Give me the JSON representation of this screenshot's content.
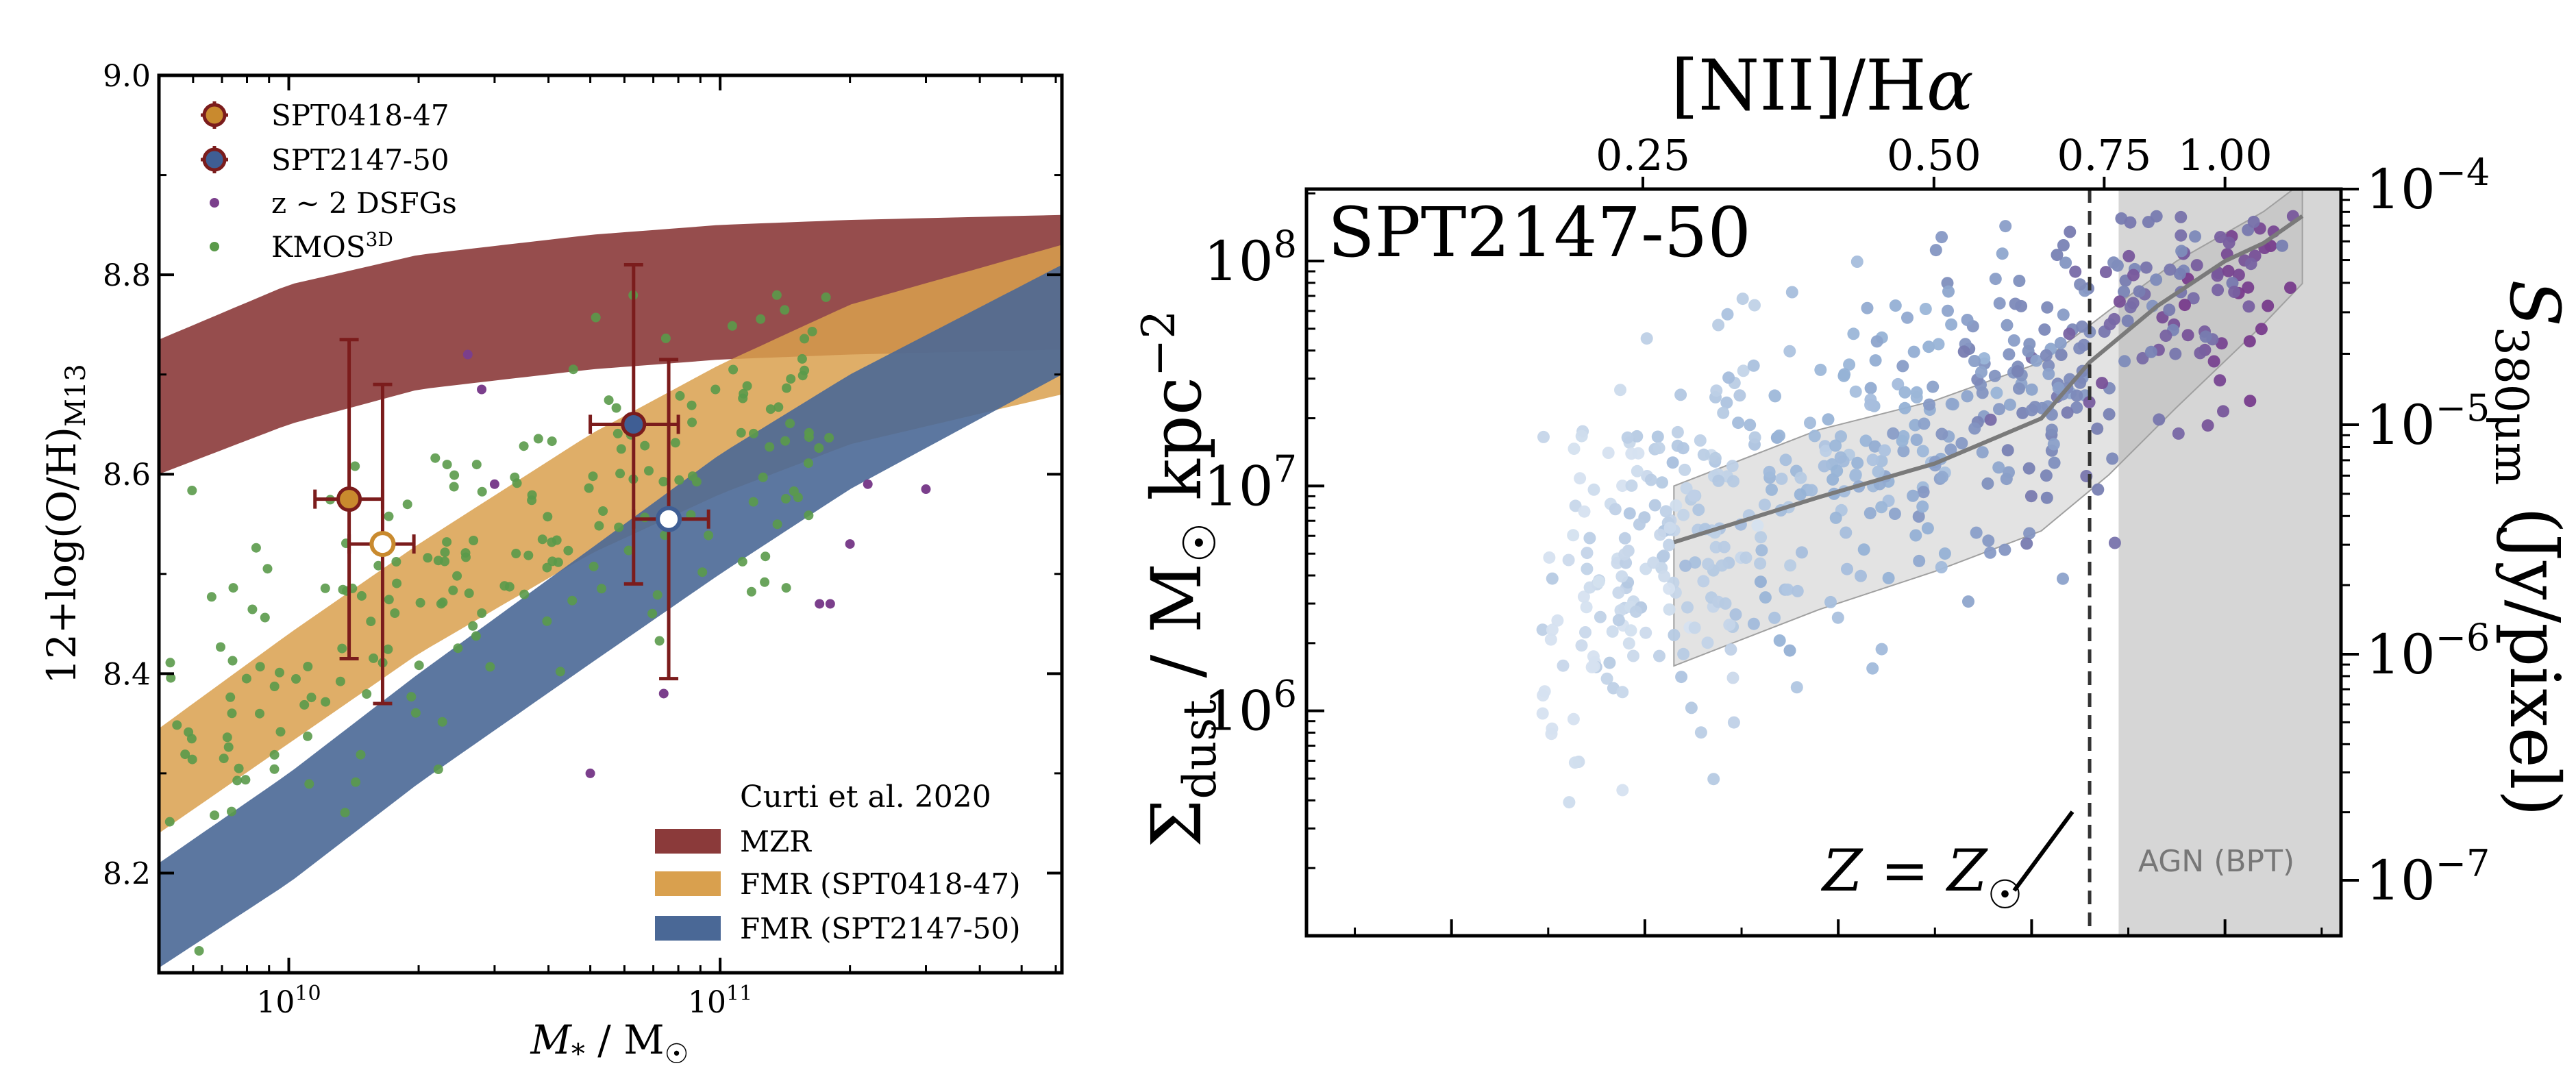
{
  "chart_data": [
    {
      "type": "scatter",
      "panel": "left",
      "xlabel": "M* / M☉",
      "ylabel": "12+log(O/H)M13",
      "xscale": "log",
      "xlim": [
        5000000000.0,
        620000000000.0
      ],
      "ylim": [
        8.1,
        9.0
      ],
      "x_ticks": [
        {
          "value": 10000000000.0,
          "label_base": "10",
          "label_exp": "10"
        },
        {
          "value": 100000000000.0,
          "label_base": "10",
          "label_exp": "11"
        }
      ],
      "y_ticks": [
        {
          "value": 8.2,
          "label": "8.2"
        },
        {
          "value": 8.4,
          "label": "8.4"
        },
        {
          "value": 8.6,
          "label": "8.6"
        },
        {
          "value": 8.8,
          "label": "8.8"
        },
        {
          "value": 9.0,
          "label": "9.0"
        }
      ],
      "legend_points": {
        "entries": [
          {
            "label": "SPT0418-47",
            "color": "#c98a2e",
            "edge": "#7b1c1c"
          },
          {
            "label": "SPT2147-50",
            "color": "#3f5e94",
            "edge": "#7b1c1c"
          },
          {
            "label": "z ∼ 2 DSFGs",
            "color": "#7b3f8c"
          },
          {
            "label": "KMOS",
            "label_sup": "3D",
            "color": "#5a9a4a"
          }
        ]
      },
      "legend_bands": {
        "title": "Curti et al. 2020",
        "entries": [
          {
            "label": "MZR",
            "color": "#8b3a3a"
          },
          {
            "label": "FMR (SPT0418-47)",
            "color": "#d9a04e"
          },
          {
            "label": "FMR (SPT2147-50)",
            "color": "#4a6896"
          }
        ]
      },
      "bands": [
        {
          "name": "MZR",
          "color": "#8b3a3a",
          "lower": [
            [
              5000000000.0,
              8.6
            ],
            [
              10000000000.0,
              8.65
            ],
            [
              20000000000.0,
              8.685
            ],
            [
              50000000000.0,
              8.705
            ],
            [
              100000000000.0,
              8.715
            ],
            [
              200000000000.0,
              8.72
            ],
            [
              620000000000.0,
              8.725
            ]
          ],
          "upper": [
            [
              5000000000.0,
              8.735
            ],
            [
              10000000000.0,
              8.79
            ],
            [
              20000000000.0,
              8.82
            ],
            [
              50000000000.0,
              8.84
            ],
            [
              100000000000.0,
              8.85
            ],
            [
              200000000000.0,
              8.855
            ],
            [
              620000000000.0,
              8.86
            ]
          ]
        },
        {
          "name": "FMR (SPT0418-47)",
          "color": "#d9a04e",
          "lower": [
            [
              5000000000.0,
              8.24
            ],
            [
              10000000000.0,
              8.33
            ],
            [
              20000000000.0,
              8.42
            ],
            [
              50000000000.0,
              8.52
            ],
            [
              100000000000.0,
              8.58
            ],
            [
              200000000000.0,
              8.63
            ],
            [
              620000000000.0,
              8.68
            ]
          ],
          "upper": [
            [
              5000000000.0,
              8.345
            ],
            [
              10000000000.0,
              8.44
            ],
            [
              20000000000.0,
              8.53
            ],
            [
              50000000000.0,
              8.64
            ],
            [
              100000000000.0,
              8.71
            ],
            [
              200000000000.0,
              8.77
            ],
            [
              620000000000.0,
              8.83
            ]
          ]
        },
        {
          "name": "FMR (SPT2147-50)",
          "color": "#4a6896",
          "lower": [
            [
              5000000000.0,
              8.105
            ],
            [
              10000000000.0,
              8.19
            ],
            [
              20000000000.0,
              8.29
            ],
            [
              50000000000.0,
              8.41
            ],
            [
              100000000000.0,
              8.5
            ],
            [
              200000000000.0,
              8.585
            ],
            [
              620000000000.0,
              8.7
            ]
          ],
          "upper": [
            [
              5000000000.0,
              8.21
            ],
            [
              10000000000.0,
              8.3
            ],
            [
              20000000000.0,
              8.4
            ],
            [
              50000000000.0,
              8.525
            ],
            [
              100000000000.0,
              8.62
            ],
            [
              200000000000.0,
              8.7
            ],
            [
              620000000000.0,
              8.81
            ]
          ]
        }
      ],
      "targets": [
        {
          "name": "SPT0418-47",
          "x": 13800000000.0,
          "y": 8.575,
          "xerr": [
            11500000000.0,
            16500000000.0
          ],
          "yerr": [
            8.415,
            8.735
          ],
          "fill": "#c98a2e"
        },
        {
          "name": "SPT0418-47 (FMR)",
          "x": 16500000000.0,
          "y": 8.53,
          "xerr": [
            13800000000.0,
            19500000000.0
          ],
          "yerr": [
            8.37,
            8.69
          ],
          "fill": "#ffffff",
          "edge": "#c98a2e"
        },
        {
          "name": "SPT2147-50",
          "x": 63000000000.0,
          "y": 8.65,
          "xerr": [
            50000000000.0,
            80000000000.0
          ],
          "yerr": [
            8.49,
            8.81
          ],
          "fill": "#3f5e94"
        },
        {
          "name": "SPT2147-50 (FMR)",
          "x": 76000000000.0,
          "y": 8.555,
          "xerr": [
            63000000000.0,
            94000000000.0
          ],
          "yerr": [
            8.395,
            8.715
          ],
          "fill": "#ffffff",
          "edge": "#3f5e94"
        }
      ],
      "dsfgs": [
        [
          28000000000.0,
          8.685
        ],
        [
          50000000000.0,
          8.3
        ],
        [
          74000000000.0,
          8.38
        ],
        [
          180000000000.0,
          8.47
        ],
        [
          200000000000.0,
          8.53
        ],
        [
          300000000000.0,
          8.585
        ],
        [
          30000000000.0,
          8.59
        ],
        [
          220000000000.0,
          8.59
        ],
        [
          170000000000.0,
          8.47
        ],
        [
          26000000000.0,
          8.72
        ]
      ]
    },
    {
      "type": "scatter",
      "panel": "right",
      "title": "SPT2147-50",
      "xlabel_top": "[NII]/Hα",
      "ylabel_left": "Σdust / M☉ kpc−2",
      "ylabel_right": "S380μm (Jy/pixel)",
      "x_top_ticks": [
        "0.25",
        "0.50",
        "0.75",
        "1.00"
      ],
      "y_left_ticks": [
        {
          "value": 6,
          "label_base": "10",
          "label_exp": "6"
        },
        {
          "value": 7,
          "label_base": "10",
          "label_exp": "7"
        },
        {
          "value": 8,
          "label_base": "10",
          "label_exp": "8"
        }
      ],
      "y_right_ticks": [
        {
          "label_base": "10",
          "label_exp": "−4"
        },
        {
          "label_base": "10",
          "label_exp": "−5"
        },
        {
          "label_base": "10",
          "label_exp": "−6"
        },
        {
          "label_base": "10",
          "label_exp": "−7"
        }
      ],
      "solar_line_label": "Z = Z☉",
      "agn_region_label": "AGN (BPT)",
      "xlim_log": [
        -0.95,
        0.12
      ],
      "ylim_log": [
        5.0,
        8.32
      ],
      "solar_x_log": -0.14,
      "agn_x_log": -0.11,
      "median_curve": [
        [
          -0.57,
          6.75
        ],
        [
          -0.42,
          6.95
        ],
        [
          -0.3,
          7.1
        ],
        [
          -0.19,
          7.3
        ],
        [
          -0.14,
          7.55
        ],
        [
          -0.07,
          7.8
        ],
        [
          0.0,
          8.0
        ],
        [
          0.04,
          8.08
        ],
        [
          0.08,
          8.2
        ]
      ],
      "band_upper": [
        [
          -0.57,
          7.0
        ],
        [
          -0.42,
          7.25
        ],
        [
          -0.3,
          7.38
        ],
        [
          -0.19,
          7.55
        ],
        [
          -0.12,
          7.78
        ],
        [
          -0.05,
          8.0
        ],
        [
          0.04,
          8.22
        ],
        [
          0.08,
          8.35
        ]
      ],
      "band_lower": [
        [
          -0.57,
          6.2
        ],
        [
          -0.42,
          6.45
        ],
        [
          -0.3,
          6.62
        ],
        [
          -0.19,
          6.8
        ],
        [
          -0.12,
          7.05
        ],
        [
          -0.05,
          7.35
        ],
        [
          0.04,
          7.72
        ],
        [
          0.08,
          7.9
        ]
      ]
    }
  ]
}
